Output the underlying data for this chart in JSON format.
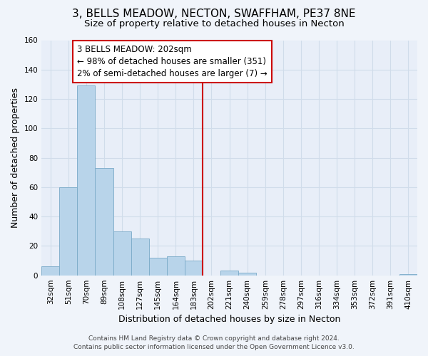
{
  "title": "3, BELLS MEADOW, NECTON, SWAFFHAM, PE37 8NE",
  "subtitle": "Size of property relative to detached houses in Necton",
  "xlabel": "Distribution of detached houses by size in Necton",
  "ylabel": "Number of detached properties",
  "bin_labels": [
    "32sqm",
    "51sqm",
    "70sqm",
    "89sqm",
    "108sqm",
    "127sqm",
    "145sqm",
    "164sqm",
    "183sqm",
    "202sqm",
    "221sqm",
    "240sqm",
    "259sqm",
    "278sqm",
    "297sqm",
    "316sqm",
    "334sqm",
    "353sqm",
    "372sqm",
    "391sqm",
    "410sqm"
  ],
  "bar_values": [
    6,
    60,
    129,
    73,
    30,
    25,
    12,
    13,
    10,
    0,
    3,
    2,
    0,
    0,
    0,
    0,
    0,
    0,
    0,
    0,
    1
  ],
  "bar_color": "#b8d4ea",
  "bar_edge_color": "#7aaac8",
  "highlight_line_color": "#cc0000",
  "annotation_line1": "3 BELLS MEADOW: 202sqm",
  "annotation_line2": "← 98% of detached houses are smaller (351)",
  "annotation_line3": "2% of semi-detached houses are larger (7) →",
  "annotation_box_color": "#ffffff",
  "annotation_box_edge_color": "#cc0000",
  "ylim": [
    0,
    160
  ],
  "yticks": [
    0,
    20,
    40,
    60,
    80,
    100,
    120,
    140,
    160
  ],
  "footer_line1": "Contains HM Land Registry data © Crown copyright and database right 2024.",
  "footer_line2": "Contains public sector information licensed under the Open Government Licence v3.0.",
  "bg_color": "#f0f4fa",
  "grid_color": "#d0dcea",
  "plot_bg_color": "#e8eef8",
  "title_fontsize": 11,
  "subtitle_fontsize": 9.5,
  "axis_label_fontsize": 9,
  "tick_fontsize": 7.5,
  "annotation_fontsize": 8.5,
  "footer_fontsize": 6.5
}
